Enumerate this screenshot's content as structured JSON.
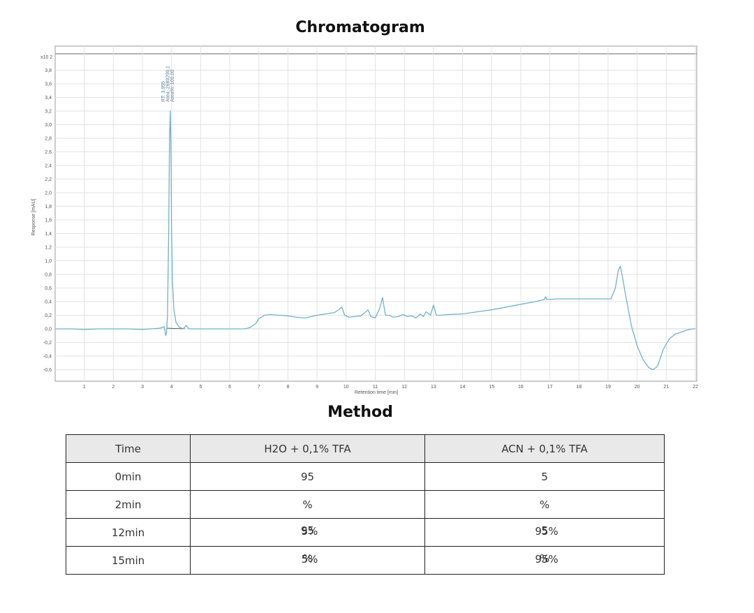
{
  "chart_title": "Chromatogram",
  "method_title": "Method",
  "chart_data": {
    "type": "line",
    "title": "Chromatogram",
    "xlabel": "Retention time [min]",
    "ylabel": "Response [mAU]",
    "y_multiplier": "x10 2",
    "xlim": [
      0,
      22
    ],
    "ylim": [
      -0.7,
      4.0
    ],
    "x_ticks": [
      "1",
      "2",
      "3",
      "4",
      "5",
      "6",
      "7",
      "8",
      "9",
      "10",
      "11",
      "12",
      "13",
      "14",
      "15",
      "16",
      "17",
      "18",
      "19",
      "20",
      "21",
      "22"
    ],
    "y_ticks": [
      "3,8",
      "3,6",
      "3,4",
      "3,2",
      "3,0",
      "2,8",
      "2,6",
      "2,4",
      "2,2",
      "2,0",
      "1,8",
      "1,6",
      "1,4",
      "1,2",
      "1,0",
      "0,8",
      "0,6",
      "0,4",
      "0,2",
      "0,0",
      "-0,2",
      "-0,4",
      "-0,6"
    ],
    "grid": true,
    "peak_annotation": [
      "RT: 3,955",
      "Area: 2689299,1",
      "Area%: 100,00"
    ],
    "series": [
      {
        "color": "#6fb2c8",
        "x": [
          0,
          0.5,
          1,
          1.5,
          2,
          2.5,
          3,
          3.3,
          3.6,
          3.75,
          3.8,
          3.83,
          3.86,
          3.9,
          3.93,
          3.955,
          3.98,
          4.0,
          4.03,
          4.08,
          4.15,
          4.25,
          4.4,
          4.5,
          4.6,
          4.8,
          5,
          5.5,
          6,
          6.5,
          6.7,
          6.9,
          7.0,
          7.2,
          7.4,
          7.7,
          8.0,
          8.3,
          8.6,
          8.8,
          9.0,
          9.3,
          9.6,
          9.75,
          9.85,
          9.95,
          10.1,
          10.3,
          10.5,
          10.65,
          10.75,
          10.85,
          11.0,
          11.15,
          11.25,
          11.35,
          11.5,
          11.6,
          11.8,
          11.95,
          12.1,
          12.25,
          12.4,
          12.55,
          12.65,
          12.75,
          12.9,
          13.0,
          13.1,
          13.25,
          13.5,
          14.0,
          14.5,
          15.0,
          15.5,
          16.0,
          16.5,
          16.8,
          16.85,
          16.9,
          17.2,
          18.0,
          18.8,
          19.1,
          19.25,
          19.35,
          19.42,
          19.5,
          19.6,
          19.8,
          20.0,
          20.2,
          20.4,
          20.55,
          20.7,
          20.9,
          21.1,
          21.3,
          21.5,
          21.7,
          21.9,
          22.0
        ],
        "y": [
          0.0,
          0.0,
          -0.01,
          0.0,
          0.0,
          0.0,
          -0.01,
          0.0,
          0.01,
          0.03,
          -0.1,
          -0.05,
          0.2,
          1.4,
          2.8,
          3.2,
          2.6,
          1.5,
          0.7,
          0.28,
          0.1,
          0.03,
          0.0,
          0.05,
          0.0,
          0.0,
          0.0,
          0.0,
          0.0,
          0.0,
          0.02,
          0.08,
          0.15,
          0.2,
          0.21,
          0.2,
          0.19,
          0.17,
          0.16,
          0.18,
          0.2,
          0.22,
          0.24,
          0.28,
          0.32,
          0.2,
          0.17,
          0.18,
          0.19,
          0.24,
          0.28,
          0.18,
          0.16,
          0.3,
          0.46,
          0.2,
          0.2,
          0.17,
          0.18,
          0.21,
          0.18,
          0.19,
          0.16,
          0.22,
          0.18,
          0.25,
          0.2,
          0.35,
          0.2,
          0.2,
          0.21,
          0.22,
          0.25,
          0.28,
          0.32,
          0.36,
          0.4,
          0.43,
          0.47,
          0.43,
          0.44,
          0.44,
          0.44,
          0.44,
          0.6,
          0.85,
          0.92,
          0.75,
          0.5,
          0.05,
          -0.25,
          -0.45,
          -0.57,
          -0.6,
          -0.55,
          -0.3,
          -0.15,
          -0.08,
          -0.05,
          -0.02,
          0.0,
          0.0
        ]
      }
    ]
  },
  "table": {
    "headers": [
      "Time",
      "H2O + 0,1% TFA",
      "ACN + 0,1% TFA"
    ],
    "rows": [
      {
        "time": "0min",
        "h2o": "95",
        "acn": "5"
      },
      {
        "time": "2min",
        "h2o": "%",
        "acn": "%"
      },
      {
        "time": "12min",
        "h2o": "95",
        "h2o_overlay": "5%",
        "acn": "5",
        "acn_overlay": "95%"
      },
      {
        "time": "15min",
        "h2o": "%",
        "h2o_overlay": "5%",
        "acn": "%",
        "acn_overlay": "95%"
      }
    ]
  }
}
